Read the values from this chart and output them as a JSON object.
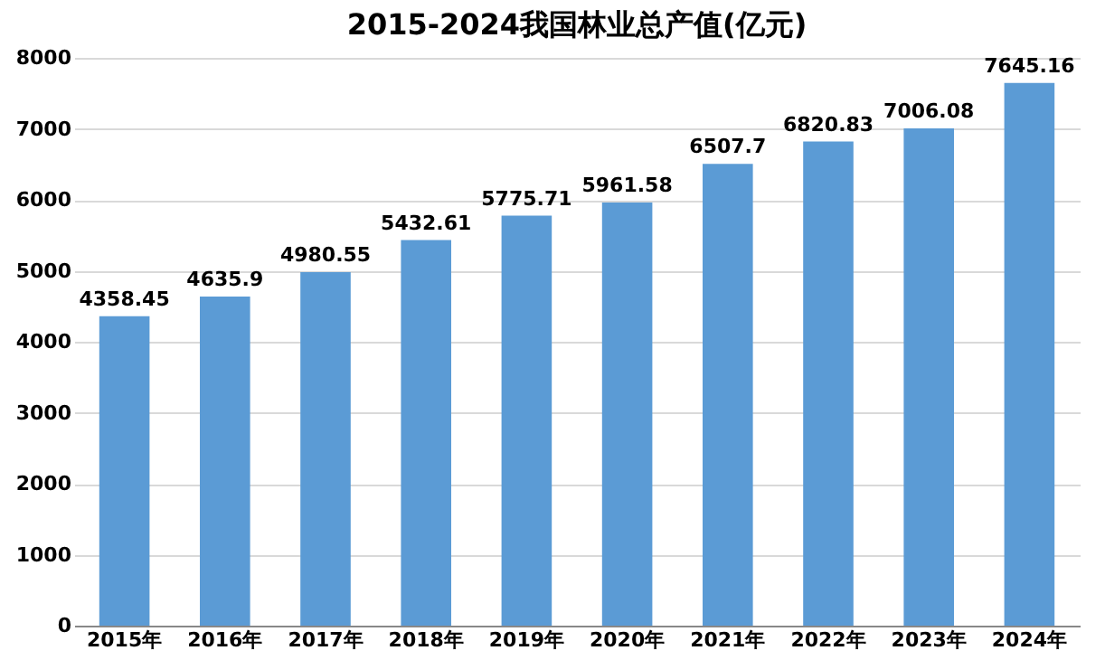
{
  "chart_data": {
    "type": "bar",
    "title": "2015-2024我国林业总产值(亿元)",
    "categories": [
      "2015年",
      "2016年",
      "2017年",
      "2018年",
      "2019年",
      "2020年",
      "2021年",
      "2022年",
      "2023年",
      "2024年"
    ],
    "values": [
      4358.45,
      4635.9,
      4980.55,
      5432.61,
      5775.71,
      5961.58,
      6507.7,
      6820.83,
      7006.08,
      7645.16
    ],
    "value_labels": [
      "4358.45",
      "4635.9",
      "4980.55",
      "5432.61",
      "5775.71",
      "5961.58",
      "6507.7",
      "6820.83",
      "7006.08",
      "7645.16"
    ],
    "color": "#5b9bd5",
    "ylim": [
      0,
      8000
    ],
    "yticks": [
      0,
      1000,
      2000,
      3000,
      4000,
      5000,
      6000,
      7000,
      8000
    ],
    "grid": "y"
  }
}
